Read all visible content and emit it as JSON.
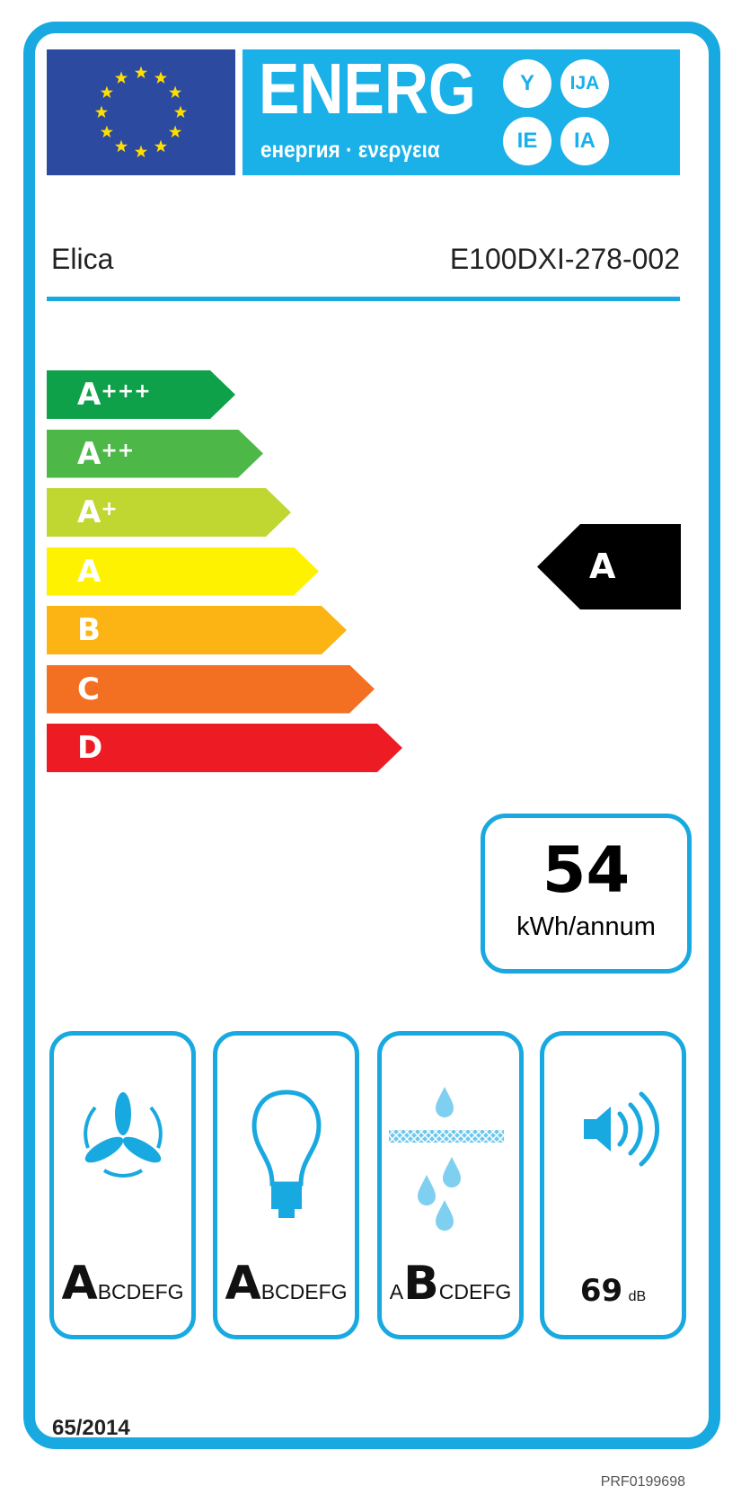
{
  "header": {
    "title": "ENERG",
    "subtitle": "енергия · ενεργεια",
    "suffixes": [
      "Y",
      "IJA",
      "IE",
      "IA"
    ]
  },
  "supplier": "Elica",
  "model": "E100DXI-278-002",
  "scale": [
    {
      "label": "A",
      "plus": "+++",
      "color": "#0fa14a"
    },
    {
      "label": "A",
      "plus": "++",
      "color": "#4db848"
    },
    {
      "label": "A",
      "plus": "+",
      "color": "#bfd730"
    },
    {
      "label": "A",
      "plus": "",
      "color": "#fff200"
    },
    {
      "label": "B",
      "plus": "",
      "color": "#fcb415"
    },
    {
      "label": "C",
      "plus": "",
      "color": "#f36f21"
    },
    {
      "label": "D",
      "plus": "",
      "color": "#ed1c24"
    }
  ],
  "rating": "A",
  "consumption": {
    "value": "54",
    "unit": "kWh/annum"
  },
  "classes": [
    {
      "icon": "fan-icon",
      "before": "",
      "selected": "A",
      "after": "BCDEFG"
    },
    {
      "icon": "light-bulb-icon",
      "before": "",
      "selected": "A",
      "after": "BCDEFG"
    },
    {
      "icon": "grease-filter-icon",
      "before": "A",
      "selected": "B",
      "after": "CDEFG"
    }
  ],
  "noise": {
    "value": "69",
    "unit": "dB"
  },
  "regulation": "65/2014",
  "code": "PRF0199698",
  "colors": {
    "border": "#19a9e1",
    "eu_blue": "#2b4aa0",
    "star": "#ffdd00"
  }
}
